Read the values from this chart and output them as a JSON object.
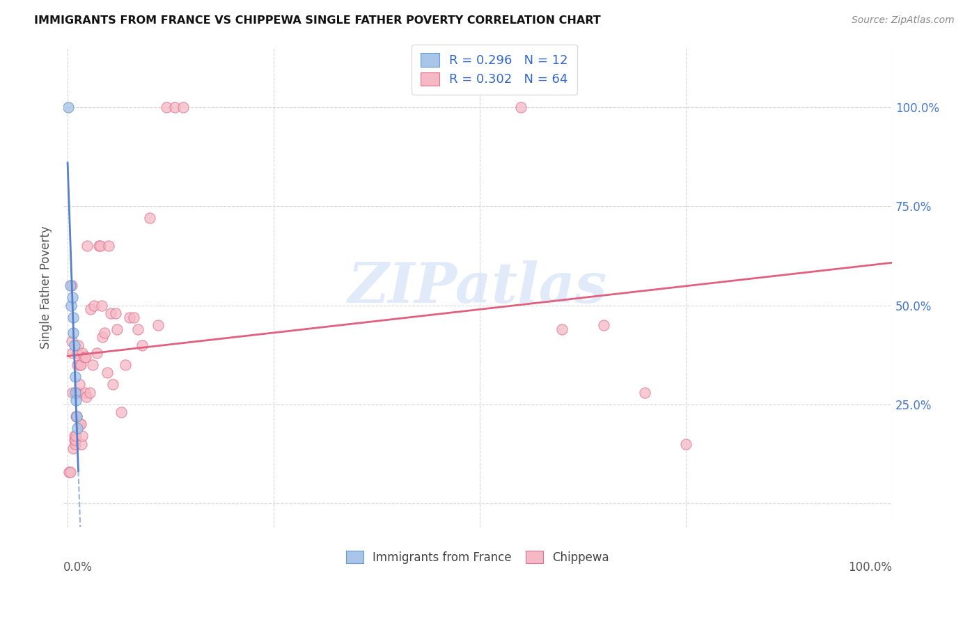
{
  "title": "IMMIGRANTS FROM FRANCE VS CHIPPEWA SINGLE FATHER POVERTY CORRELATION CHART",
  "source": "Source: ZipAtlas.com",
  "ylabel": "Single Father Poverty",
  "legend_r1": "R = 0.296   N = 12",
  "legend_r2": "R = 0.302   N = 64",
  "blue_fill": "#a8c4e8",
  "blue_edge": "#6699cc",
  "pink_fill": "#f5b8c4",
  "pink_edge": "#e07090",
  "blue_line": "#5580cc",
  "pink_line": "#e06080",
  "watermark": "ZIPatlas",
  "france_x": [
    0.0005,
    0.003,
    0.004,
    0.006,
    0.007,
    0.007,
    0.008,
    0.009,
    0.009,
    0.01,
    0.011,
    0.012
  ],
  "france_y": [
    1.0,
    0.55,
    0.5,
    0.52,
    0.47,
    0.43,
    0.4,
    0.32,
    0.28,
    0.26,
    0.22,
    0.19
  ],
  "chippewa_x": [
    0.002,
    0.003,
    0.005,
    0.005,
    0.006,
    0.006,
    0.007,
    0.008,
    0.008,
    0.009,
    0.009,
    0.01,
    0.01,
    0.011,
    0.011,
    0.012,
    0.012,
    0.013,
    0.013,
    0.014,
    0.015,
    0.015,
    0.016,
    0.016,
    0.017,
    0.018,
    0.018,
    0.02,
    0.021,
    0.022,
    0.023,
    0.024,
    0.027,
    0.028,
    0.03,
    0.032,
    0.035,
    0.038,
    0.04,
    0.041,
    0.042,
    0.045,
    0.048,
    0.05,
    0.052,
    0.055,
    0.058,
    0.06,
    0.065,
    0.07,
    0.075,
    0.08,
    0.085,
    0.09,
    0.1,
    0.11,
    0.12,
    0.13,
    0.14,
    0.55,
    0.6,
    0.65,
    0.7,
    0.75
  ],
  "chippewa_y": [
    0.08,
    0.08,
    0.41,
    0.55,
    0.28,
    0.38,
    0.14,
    0.16,
    0.17,
    0.15,
    0.16,
    0.17,
    0.22,
    0.28,
    0.22,
    0.35,
    0.38,
    0.4,
    0.28,
    0.3,
    0.2,
    0.35,
    0.2,
    0.35,
    0.15,
    0.17,
    0.38,
    0.37,
    0.28,
    0.37,
    0.27,
    0.65,
    0.28,
    0.49,
    0.35,
    0.5,
    0.38,
    0.65,
    0.65,
    0.5,
    0.42,
    0.43,
    0.33,
    0.65,
    0.48,
    0.3,
    0.48,
    0.44,
    0.23,
    0.35,
    0.47,
    0.47,
    0.44,
    0.4,
    0.72,
    0.45,
    1.0,
    1.0,
    1.0,
    1.0,
    0.44,
    0.45,
    0.28,
    0.15
  ],
  "xlim": [
    -0.005,
    1.0
  ],
  "ylim": [
    -0.06,
    1.15
  ]
}
